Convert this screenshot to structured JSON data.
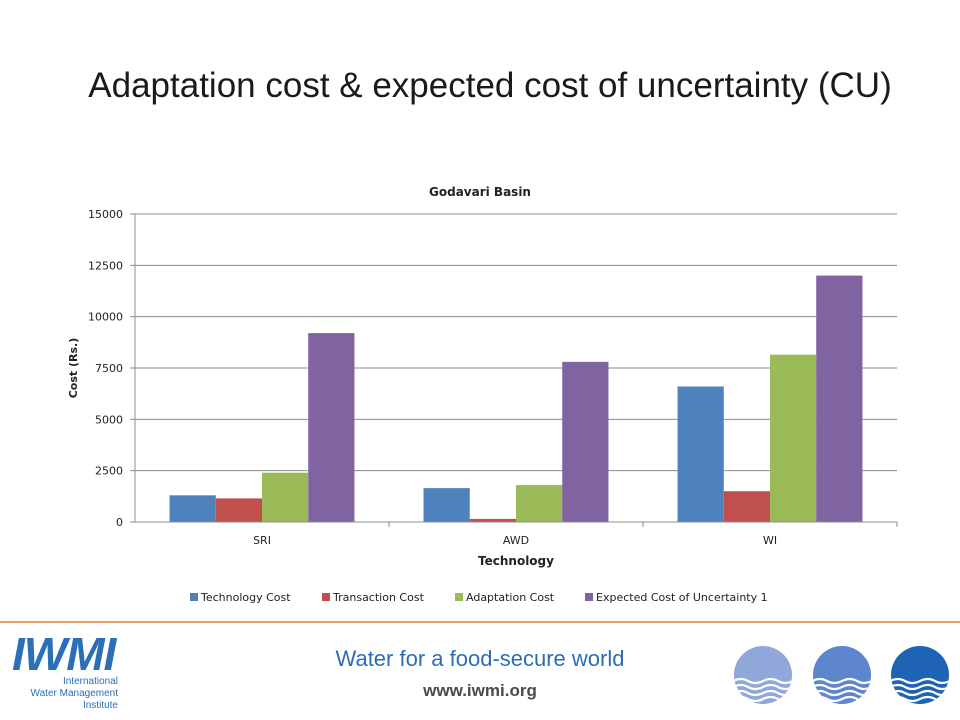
{
  "slide": {
    "title": "Adaptation cost & expected cost of uncertainty (CU)"
  },
  "footer": {
    "tagline": "Water for a food-secure world",
    "url": "www.iwmi.org",
    "logo_mark": "IWMI",
    "logo_name_lines": [
      "International",
      "Water Management",
      "Institute"
    ]
  },
  "chart_data": {
    "type": "bar",
    "title": "Godavari Basin",
    "xlabel": "Technology",
    "ylabel": "Cost (Rs.)",
    "categories": [
      "SRI",
      "AWD",
      "WI"
    ],
    "ylim": [
      0,
      15000
    ],
    "yticks": [
      0,
      2500,
      5000,
      7500,
      10000,
      12500,
      15000
    ],
    "grid": true,
    "legend_position": "bottom",
    "series": [
      {
        "name": "Technology Cost",
        "color": "#4f81bd",
        "values": [
          1300,
          1650,
          6600
        ]
      },
      {
        "name": "Transaction Cost",
        "color": "#c0504d",
        "values": [
          1150,
          150,
          1500
        ]
      },
      {
        "name": "Adaptation Cost",
        "color": "#9bbb59",
        "values": [
          2400,
          1800,
          8150
        ]
      },
      {
        "name": "Expected Cost of Uncertainty 1",
        "color": "#8064a2",
        "values": [
          9200,
          7800,
          12000
        ]
      }
    ]
  }
}
